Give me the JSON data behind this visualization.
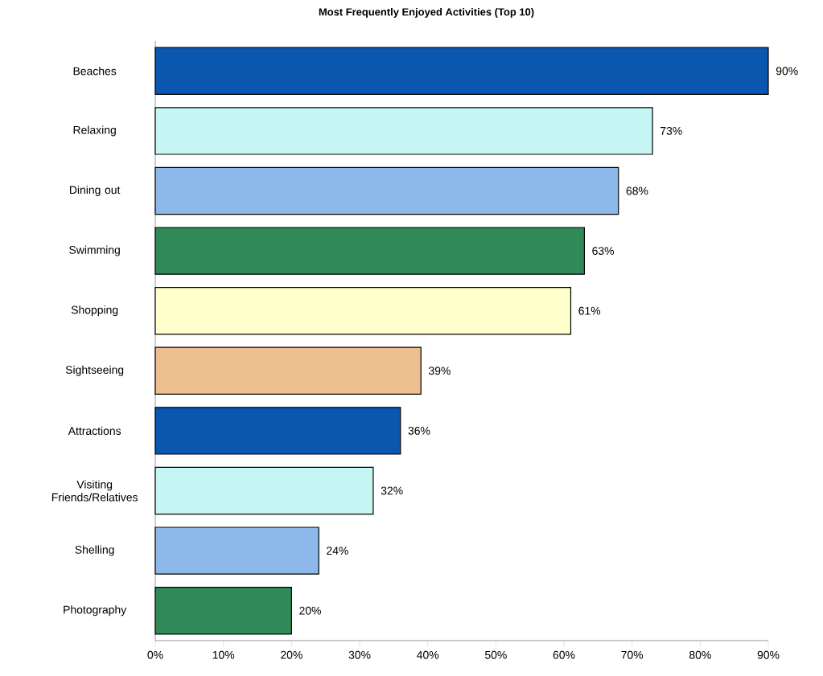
{
  "chart_data": {
    "type": "bar",
    "orientation": "horizontal",
    "title": "Most Frequently Enjoyed Activities (Top 10)",
    "categories": [
      "Beaches",
      "Relaxing",
      "Dining out",
      "Swimming",
      "Shopping",
      "Sightseeing",
      "Attractions",
      "Visiting Friends/Relatives",
      "Shelling",
      "Photography"
    ],
    "values": [
      90,
      73,
      68,
      63,
      61,
      39,
      36,
      32,
      24,
      20
    ],
    "value_labels": [
      "90%",
      "73%",
      "68%",
      "63%",
      "61%",
      "39%",
      "36%",
      "32%",
      "24%",
      "20%"
    ],
    "colors": [
      "#0b57b0",
      "#c6f6f4",
      "#8db8ea",
      "#2f8a58",
      "#ffffcc",
      "#eebf8e",
      "#0b57b0",
      "#c6f6f4",
      "#8db8ea",
      "#2f8a58"
    ],
    "xlim": [
      0,
      90
    ],
    "xticks": [
      {
        "value": 0,
        "label": "0%"
      },
      {
        "value": 10,
        "label": "10%"
      },
      {
        "value": 20,
        "label": "20%"
      },
      {
        "value": 30,
        "label": "30%"
      },
      {
        "value": 40,
        "label": "40%"
      },
      {
        "value": 50,
        "label": "50%"
      },
      {
        "value": 60,
        "label": "60%"
      },
      {
        "value": 70,
        "label": "70%"
      },
      {
        "value": 80,
        "label": "80%"
      },
      {
        "value": 90,
        "label": "90%"
      }
    ]
  }
}
